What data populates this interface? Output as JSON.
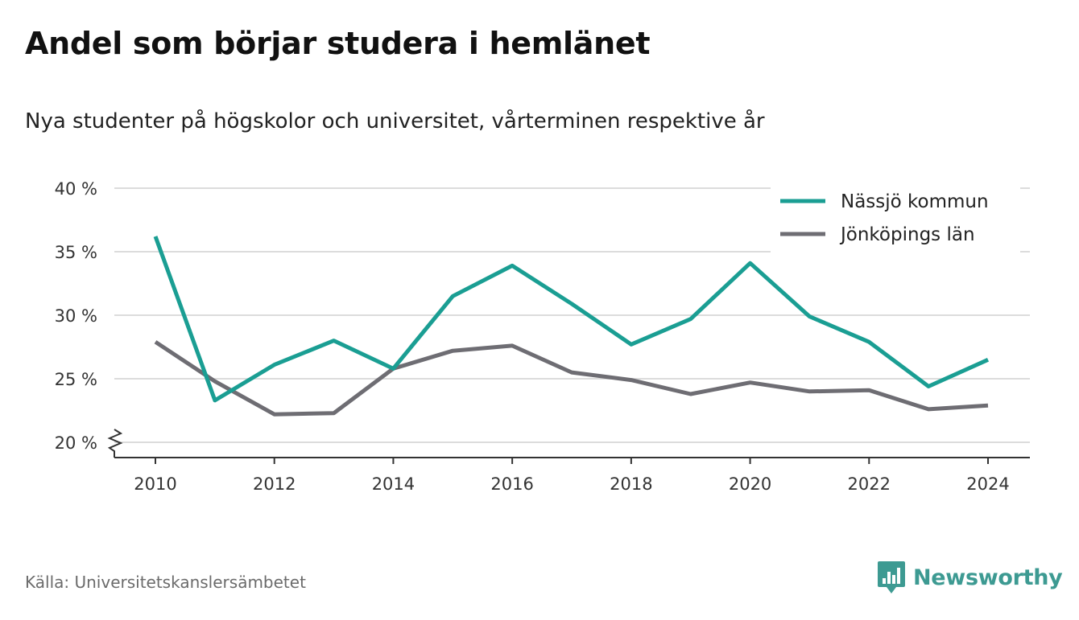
{
  "title": "Andel som börjar studera i hemlänet",
  "subtitle": "Nya studenter på högskolor och universitet, vårterminen respektive år",
  "source": "Källa: Universitetskanslersämbetet",
  "brand": {
    "name": "Newsworthy",
    "logo_icon": "bar-chart-speech-bubble-icon"
  },
  "chart_data": {
    "type": "line",
    "x": [
      2010,
      2011,
      2012,
      2013,
      2014,
      2015,
      2016,
      2017,
      2018,
      2019,
      2020,
      2021,
      2022,
      2023,
      2024
    ],
    "x_ticks": [
      "2010",
      "2012",
      "2014",
      "2016",
      "2018",
      "2020",
      "2022",
      "2024"
    ],
    "x_tick_values": [
      2010,
      2012,
      2014,
      2016,
      2018,
      2020,
      2022,
      2024
    ],
    "y_ticks": [
      "20 %",
      "25 %",
      "30 %",
      "35 %",
      "40 %"
    ],
    "y_tick_values": [
      20,
      25,
      30,
      35,
      40
    ],
    "ylim": [
      20,
      40
    ],
    "y_axis_break": true,
    "grid": true,
    "legend_position": "top-right",
    "series": [
      {
        "name": "Nässjö kommun",
        "color": "#1a9e93",
        "values": [
          36.2,
          23.3,
          26.1,
          28.0,
          25.8,
          31.5,
          33.9,
          30.9,
          27.7,
          29.7,
          34.1,
          29.9,
          27.9,
          24.4,
          26.5
        ]
      },
      {
        "name": "Jönköpings län",
        "color": "#6e6d73",
        "values": [
          27.9,
          24.8,
          22.2,
          22.3,
          25.8,
          27.2,
          27.6,
          25.5,
          24.9,
          23.8,
          24.7,
          24.0,
          24.1,
          22.6,
          22.9
        ]
      }
    ]
  }
}
